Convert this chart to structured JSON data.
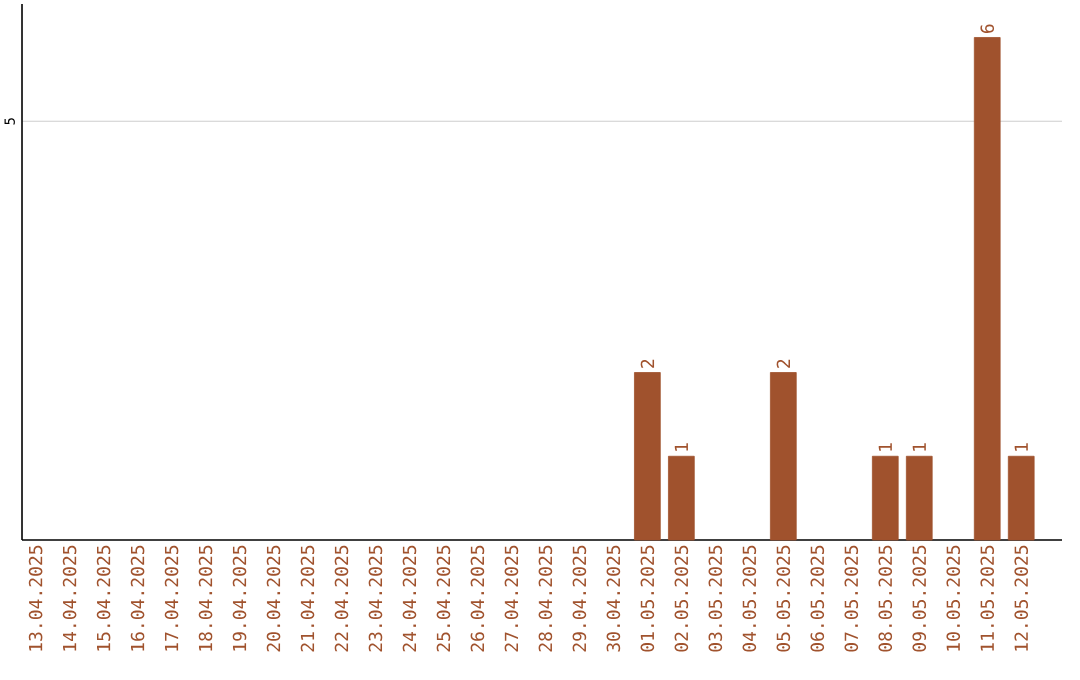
{
  "chart_data": {
    "type": "bar",
    "categories": [
      "13.04.2025",
      "14.04.2025",
      "15.04.2025",
      "16.04.2025",
      "17.04.2025",
      "18.04.2025",
      "19.04.2025",
      "20.04.2025",
      "21.04.2025",
      "22.04.2025",
      "23.04.2025",
      "24.04.2025",
      "25.04.2025",
      "26.04.2025",
      "27.04.2025",
      "28.04.2025",
      "29.04.2025",
      "30.04.2025",
      "01.05.2025",
      "02.05.2025",
      "03.05.2025",
      "04.05.2025",
      "05.05.2025",
      "06.05.2025",
      "07.05.2025",
      "08.05.2025",
      "09.05.2025",
      "10.05.2025",
      "11.05.2025",
      "12.05.2025"
    ],
    "values": [
      null,
      null,
      null,
      null,
      null,
      null,
      null,
      null,
      null,
      null,
      null,
      null,
      null,
      null,
      null,
      null,
      null,
      null,
      2,
      1,
      null,
      null,
      2,
      null,
      null,
      1,
      1,
      null,
      6,
      1
    ],
    "data_labels": true,
    "color": "#a0522d",
    "ylim": [
      0,
      6.4
    ],
    "yticks": [
      5
    ],
    "grid": "y"
  }
}
